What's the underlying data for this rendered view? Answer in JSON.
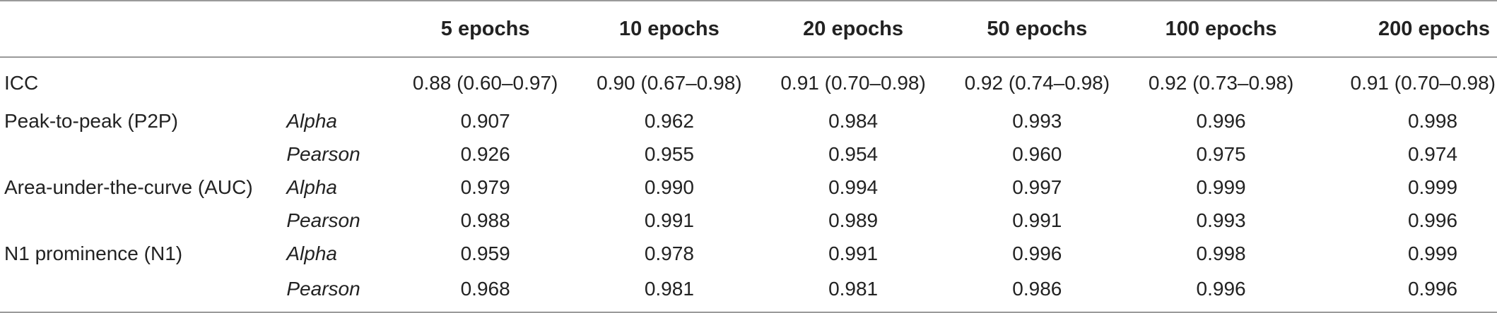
{
  "table": {
    "headers": [
      "",
      "",
      "5 epochs",
      "10 epochs",
      "20 epochs",
      "50 epochs",
      "100 epochs",
      "200 epochs"
    ],
    "rows": [
      {
        "measure": "ICC",
        "stat": "",
        "values": [
          "0.88 (0.60–0.97)",
          "0.90 (0.67–0.98)",
          "0.91 (0.70–0.98)",
          "0.92 (0.74–0.98)",
          "0.92 (0.73–0.98)",
          "0.91 (0.70–0.98)"
        ]
      },
      {
        "measure": "Peak-to-peak (P2P)",
        "stat": "Alpha",
        "values": [
          "0.907",
          "0.962",
          "0.984",
          "0.993",
          "0.996",
          "0.998"
        ]
      },
      {
        "measure": "",
        "stat": "Pearson",
        "values": [
          "0.926",
          "0.955",
          "0.954",
          "0.960",
          "0.975",
          "0.974"
        ]
      },
      {
        "measure": "Area-under-the-curve (AUC)",
        "stat": "Alpha",
        "values": [
          "0.979",
          "0.990",
          "0.994",
          "0.997",
          "0.999",
          "0.999"
        ]
      },
      {
        "measure": "",
        "stat": "Pearson",
        "values": [
          "0.988",
          "0.991",
          "0.989",
          "0.991",
          "0.993",
          "0.996"
        ]
      },
      {
        "measure": "N1 prominence (N1)",
        "stat": "Alpha",
        "values": [
          "0.959",
          "0.978",
          "0.991",
          "0.996",
          "0.998",
          "0.999"
        ]
      },
      {
        "measure": "",
        "stat": "Pearson",
        "values": [
          "0.968",
          "0.981",
          "0.981",
          "0.986",
          "0.996",
          "0.996"
        ]
      }
    ]
  }
}
